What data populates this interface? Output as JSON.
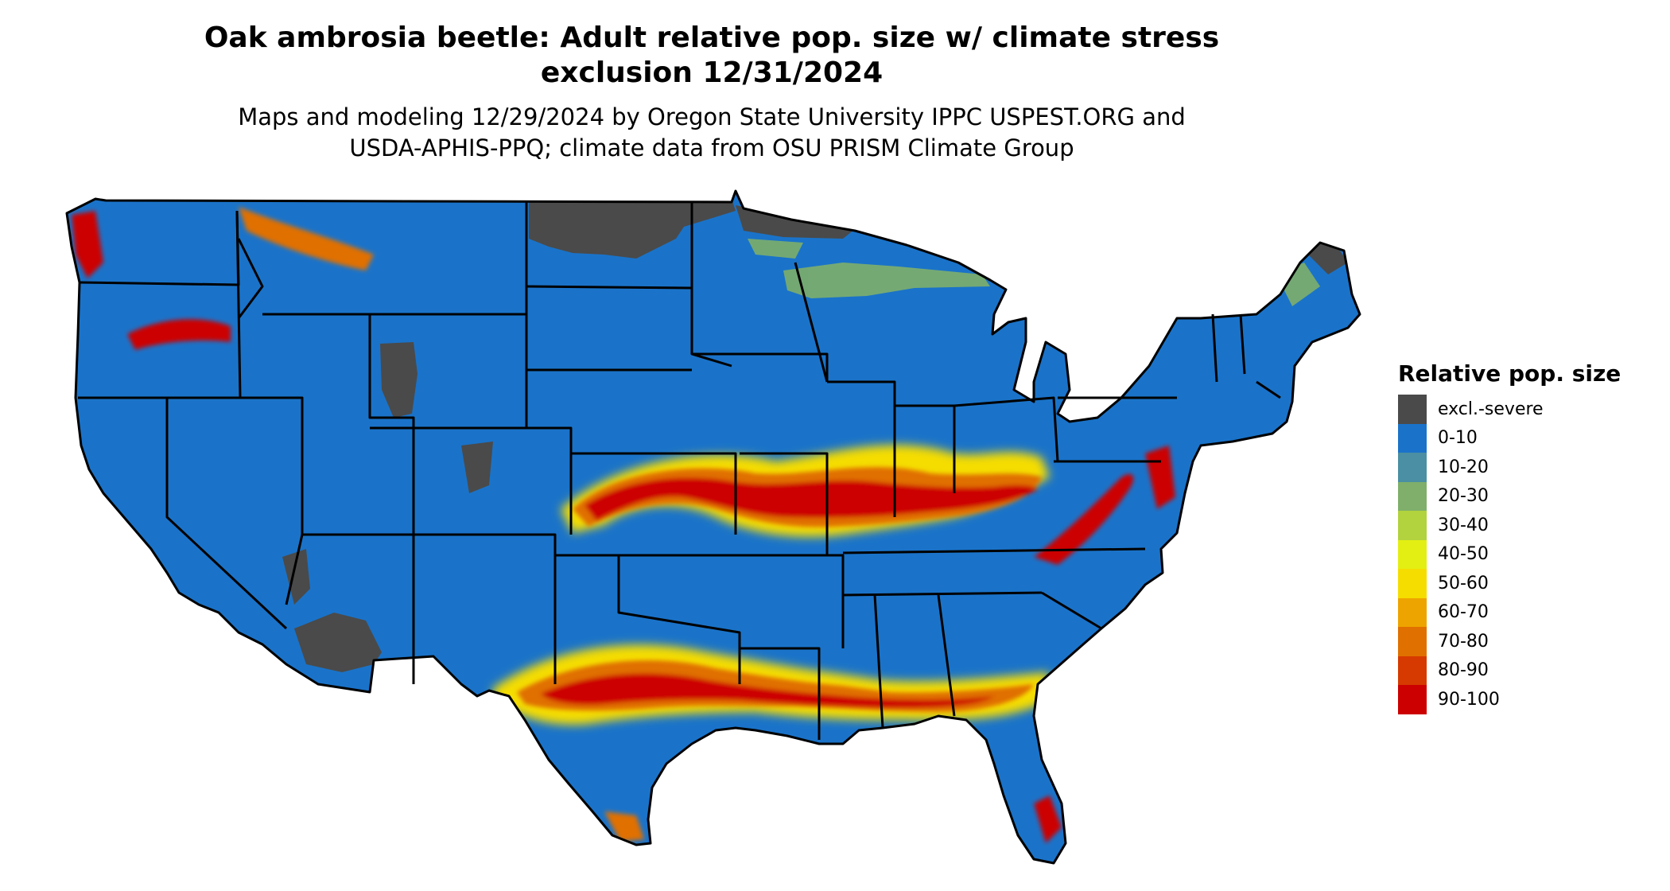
{
  "title_line1": "Oak ambrosia beetle: Adult relative pop. size w/ climate stress",
  "title_line2": "exclusion 12/31/2024",
  "subtitle_line1": "Maps and modeling 12/29/2024 by Oregon State University IPPC USPEST.ORG and",
  "subtitle_line2": "USDA-APHIS-PPQ; climate data from OSU PRISM Climate Group",
  "legend": {
    "title": "Relative pop. size",
    "items": [
      {
        "label": "excl.-severe",
        "color": "#4a4a4a"
      },
      {
        "label": "0-10",
        "color": "#1a73c9"
      },
      {
        "label": "10-20",
        "color": "#4a8fa3"
      },
      {
        "label": "20-30",
        "color": "#7faf6a"
      },
      {
        "label": "30-40",
        "color": "#b2d23e"
      },
      {
        "label": "40-50",
        "color": "#e3ef12"
      },
      {
        "label": "50-60",
        "color": "#f5dd00"
      },
      {
        "label": "60-70",
        "color": "#eea400"
      },
      {
        "label": "70-80",
        "color": "#e07000"
      },
      {
        "label": "80-90",
        "color": "#d63a00"
      },
      {
        "label": "90-100",
        "color": "#cc0000"
      }
    ]
  },
  "map": {
    "base_color": "#1a73c9",
    "border_color": "#000000"
  }
}
